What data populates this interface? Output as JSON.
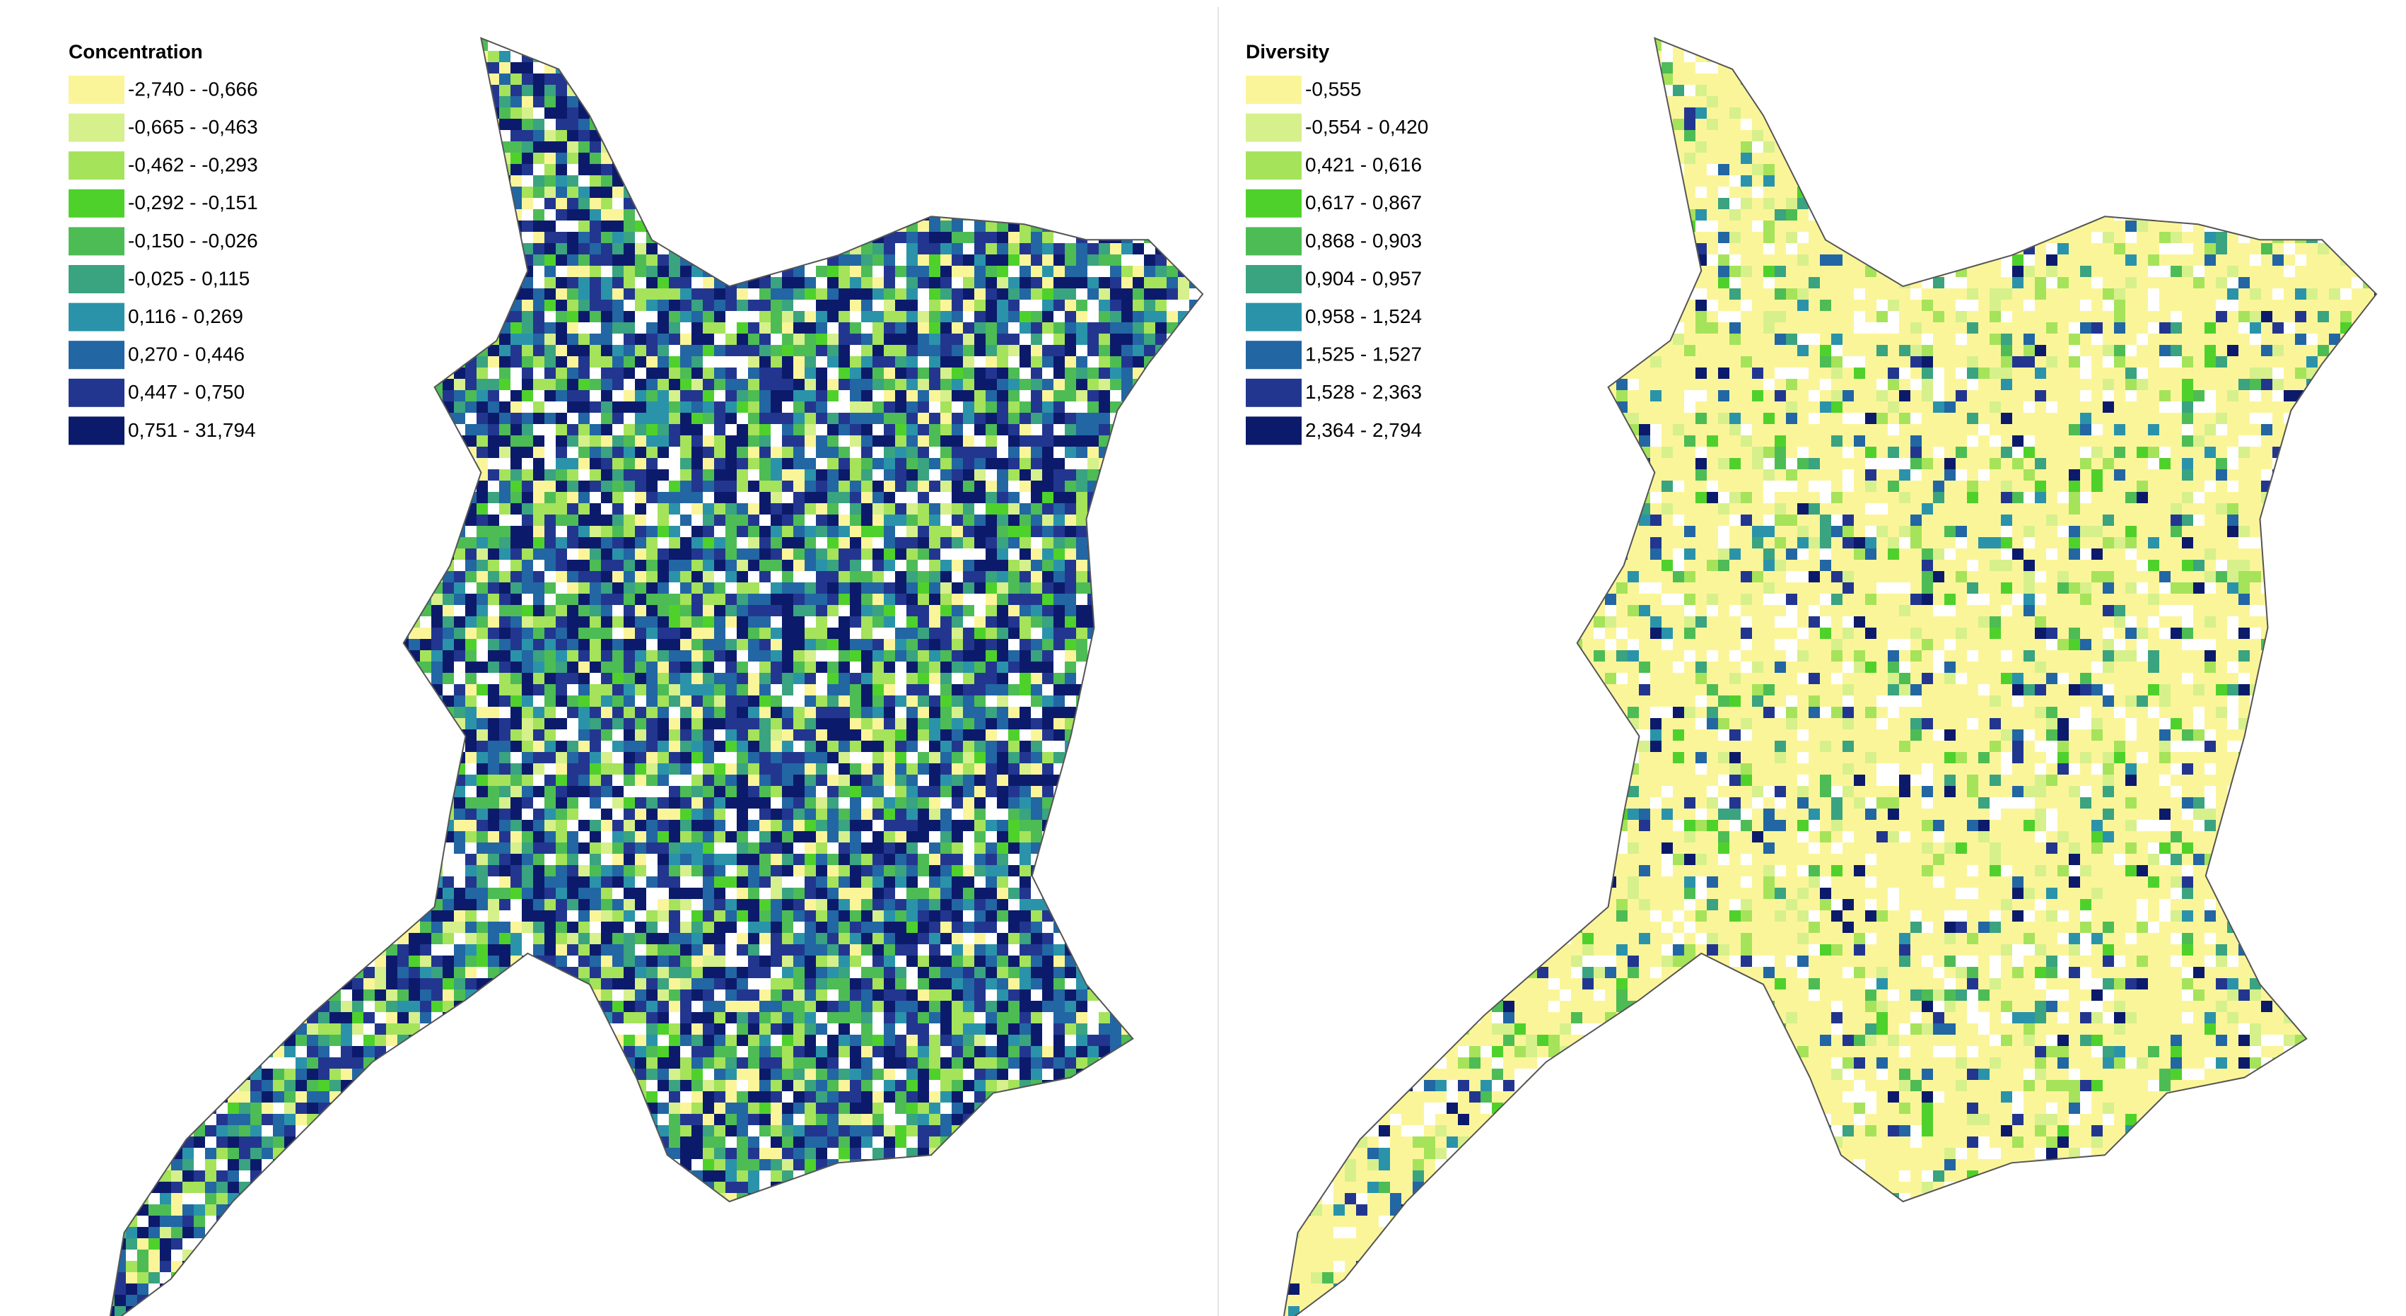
{
  "panels": [
    {
      "legend": {
        "title": "Concentration",
        "classes": [
          {
            "label": "-2,740 - -0,666",
            "color": "#fbf59a"
          },
          {
            "label": "-0,665 - -0,463",
            "color": "#d6f08c"
          },
          {
            "label": "-0,462 - -0,293",
            "color": "#a5e35a"
          },
          {
            "label": "-0,292 - -0,151",
            "color": "#4fd12c"
          },
          {
            "label": "-0,150 - -0,026",
            "color": "#4dbc55"
          },
          {
            "label": "-0,025 - 0,115",
            "color": "#3aa380"
          },
          {
            "label": "0,116 - 0,269",
            "color": "#2a93aa"
          },
          {
            "label": "0,270 - 0,446",
            "color": "#2266a3"
          },
          {
            "label": "0,447 - 0,750",
            "color": "#22368f"
          },
          {
            "label": "0,751 - 31,794",
            "color": "#0c1a6b"
          }
        ]
      }
    },
    {
      "legend": {
        "title": "Diversity",
        "classes": [
          {
            "label": "-0,555",
            "color": "#fbf59a"
          },
          {
            "label": "-0,554 - 0,420",
            "color": "#d6f08c"
          },
          {
            "label": "0,421 - 0,616",
            "color": "#a5e35a"
          },
          {
            "label": "0,617 - 0,867",
            "color": "#4fd12c"
          },
          {
            "label": "0,868 - 0,903",
            "color": "#4dbc55"
          },
          {
            "label": "0,904 - 0,957",
            "color": "#3aa380"
          },
          {
            "label": "0,958 - 1,524",
            "color": "#2a93aa"
          },
          {
            "label": "1,525 - 1,527",
            "color": "#2266a3"
          },
          {
            "label": "1,528 - 2,363",
            "color": "#22368f"
          },
          {
            "label": "2,364 - 2,794",
            "color": "#0c1a6b"
          }
        ]
      }
    }
  ]
}
